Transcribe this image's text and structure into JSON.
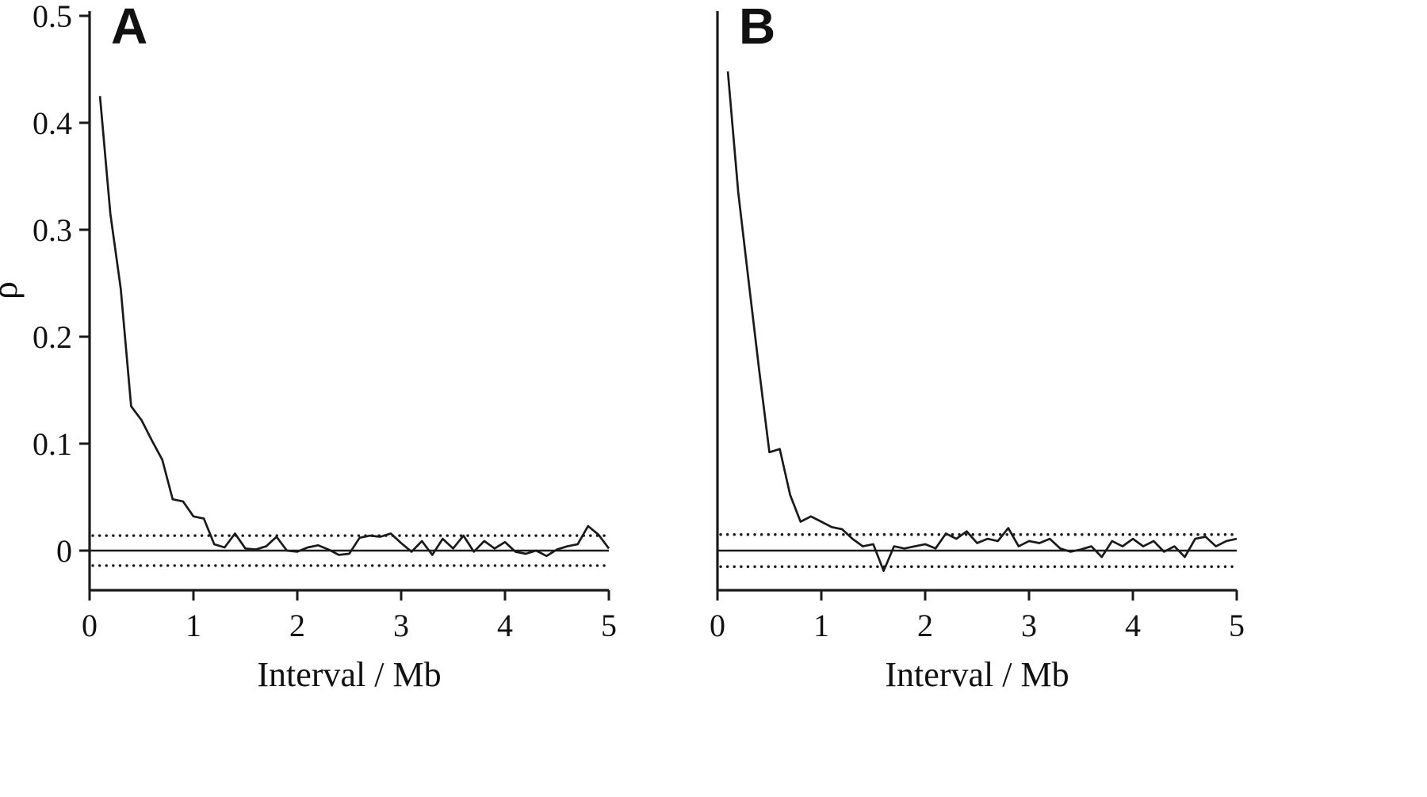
{
  "figure": {
    "background": "#ffffff",
    "stroke_color": "#1a1a1a",
    "panels": [
      {
        "label": "A",
        "xlabel": "Interval / Mb",
        "ylabel": "ρ"
      },
      {
        "label": "B",
        "xlabel": "Interval / Mb",
        "ylabel": ""
      }
    ]
  },
  "chart_data": [
    {
      "type": "line",
      "panel": "A",
      "title": "",
      "xlabel": "Interval / Mb",
      "ylabel": "ρ",
      "xlim": [
        0,
        5
      ],
      "ylim": [
        -0.04,
        0.5
      ],
      "x_ticks": [
        0,
        1,
        2,
        3,
        4,
        5
      ],
      "y_ticks": [
        0,
        0.1,
        0.2,
        0.3,
        0.4,
        0.5
      ],
      "show_y_tick_labels": true,
      "grid": false,
      "legend": "none",
      "zero_line": 0,
      "confidence_band": {
        "upper": 0.014,
        "lower": -0.014,
        "style": "dotted"
      },
      "x": [
        0.1,
        0.2,
        0.3,
        0.4,
        0.5,
        0.6,
        0.7,
        0.8,
        0.9,
        1.0,
        1.1,
        1.2,
        1.3,
        1.4,
        1.5,
        1.6,
        1.7,
        1.8,
        1.9,
        2.0,
        2.1,
        2.2,
        2.3,
        2.4,
        2.5,
        2.6,
        2.7,
        2.8,
        2.9,
        3.0,
        3.1,
        3.2,
        3.3,
        3.4,
        3.5,
        3.6,
        3.7,
        3.8,
        3.9,
        4.0,
        4.1,
        4.2,
        4.3,
        4.4,
        4.5,
        4.6,
        4.7,
        4.8,
        4.9,
        5.0
      ],
      "y": [
        0.425,
        0.315,
        0.245,
        0.135,
        0.122,
        0.103,
        0.085,
        0.048,
        0.046,
        0.032,
        0.03,
        0.006,
        0.003,
        0.016,
        0.002,
        0.001,
        0.004,
        0.013,
        0.0,
        -0.001,
        0.003,
        0.005,
        0.001,
        -0.004,
        -0.003,
        0.012,
        0.014,
        0.013,
        0.016,
        0.007,
        -0.001,
        0.009,
        -0.004,
        0.011,
        0.002,
        0.014,
        -0.001,
        0.009,
        0.002,
        0.008,
        -0.001,
        -0.003,
        0.0,
        -0.005,
        0.001,
        0.004,
        0.006,
        0.023,
        0.015,
        0.002
      ]
    },
    {
      "type": "line",
      "panel": "B",
      "title": "",
      "xlabel": "Interval / Mb",
      "ylabel": "",
      "xlim": [
        0,
        5
      ],
      "ylim": [
        -0.04,
        0.5
      ],
      "x_ticks": [
        0,
        1,
        2,
        3,
        4,
        5
      ],
      "y_ticks": [
        0,
        0.1,
        0.2,
        0.3,
        0.4,
        0.5
      ],
      "show_y_tick_labels": false,
      "grid": false,
      "legend": "none",
      "zero_line": 0,
      "confidence_band": {
        "upper": 0.015,
        "lower": -0.015,
        "style": "dotted"
      },
      "x": [
        0.1,
        0.2,
        0.3,
        0.4,
        0.5,
        0.6,
        0.7,
        0.8,
        0.9,
        1.0,
        1.1,
        1.2,
        1.3,
        1.4,
        1.5,
        1.6,
        1.7,
        1.8,
        1.9,
        2.0,
        2.1,
        2.2,
        2.3,
        2.4,
        2.5,
        2.6,
        2.7,
        2.8,
        2.9,
        3.0,
        3.1,
        3.2,
        3.3,
        3.4,
        3.5,
        3.6,
        3.7,
        3.8,
        3.9,
        4.0,
        4.1,
        4.2,
        4.3,
        4.4,
        4.5,
        4.6,
        4.7,
        4.8,
        4.9,
        5.0
      ],
      "y": [
        0.448,
        0.335,
        0.252,
        0.17,
        0.092,
        0.095,
        0.052,
        0.027,
        0.032,
        0.027,
        0.022,
        0.02,
        0.011,
        0.004,
        0.006,
        -0.019,
        0.004,
        0.002,
        0.004,
        0.006,
        0.002,
        0.016,
        0.011,
        0.018,
        0.007,
        0.011,
        0.009,
        0.021,
        0.004,
        0.009,
        0.007,
        0.011,
        0.002,
        -0.001,
        0.001,
        0.004,
        -0.006,
        0.009,
        0.004,
        0.011,
        0.004,
        0.009,
        -0.001,
        0.004,
        -0.006,
        0.011,
        0.013,
        0.004,
        0.009,
        0.011
      ]
    }
  ]
}
